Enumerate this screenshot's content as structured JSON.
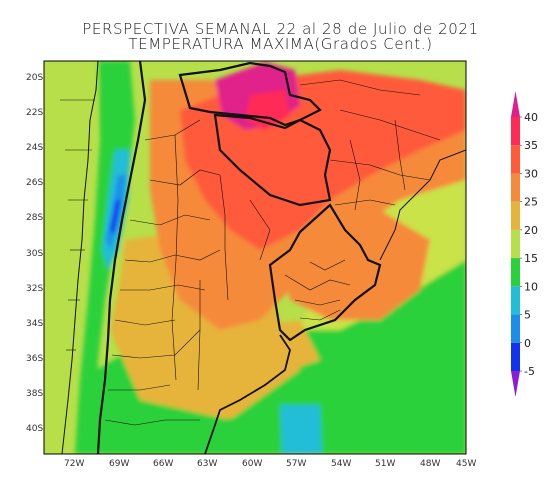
{
  "title_line1": "PERSPECTIVA SEMANAL  22 al 28 de Julio de 2021",
  "title_line2": "TEMPERATURA MAXIMA(Grados Cent.)",
  "lat_labels": [
    "20S",
    "22S",
    "24S",
    "26S",
    "28S",
    "30S",
    "32S",
    "34S",
    "36S",
    "38S",
    "40S"
  ],
  "lon_labels": [
    "72W",
    "69W",
    "66W",
    "63W",
    "60W",
    "57W",
    "54W",
    "51W",
    "48W",
    "45W"
  ],
  "colorbar": {
    "labels": [
      "40",
      "35",
      "30",
      "25",
      "20",
      "15",
      "10",
      "5",
      "0",
      "-5"
    ],
    "bands": [
      {
        "from": 35,
        "to": 40,
        "color": "#ff2a55"
      },
      {
        "from": 30,
        "to": 35,
        "color": "#ff5a3a"
      },
      {
        "from": 25,
        "to": 30,
        "color": "#f58a3a"
      },
      {
        "from": 20,
        "to": 25,
        "color": "#e6b43a"
      },
      {
        "from": 15,
        "to": 20,
        "color": "#b6df4a"
      },
      {
        "from": 10,
        "to": 15,
        "color": "#2ad13a"
      },
      {
        "from": 5,
        "to": 10,
        "color": "#22bdd6"
      },
      {
        "from": 0,
        "to": 5,
        "color": "#1a8fea"
      },
      {
        "from": -5,
        "to": 0,
        "color": "#1232f0"
      }
    ],
    "top_tip_color": "#e0208a",
    "bottom_tip_color": "#8a1ed8"
  }
}
